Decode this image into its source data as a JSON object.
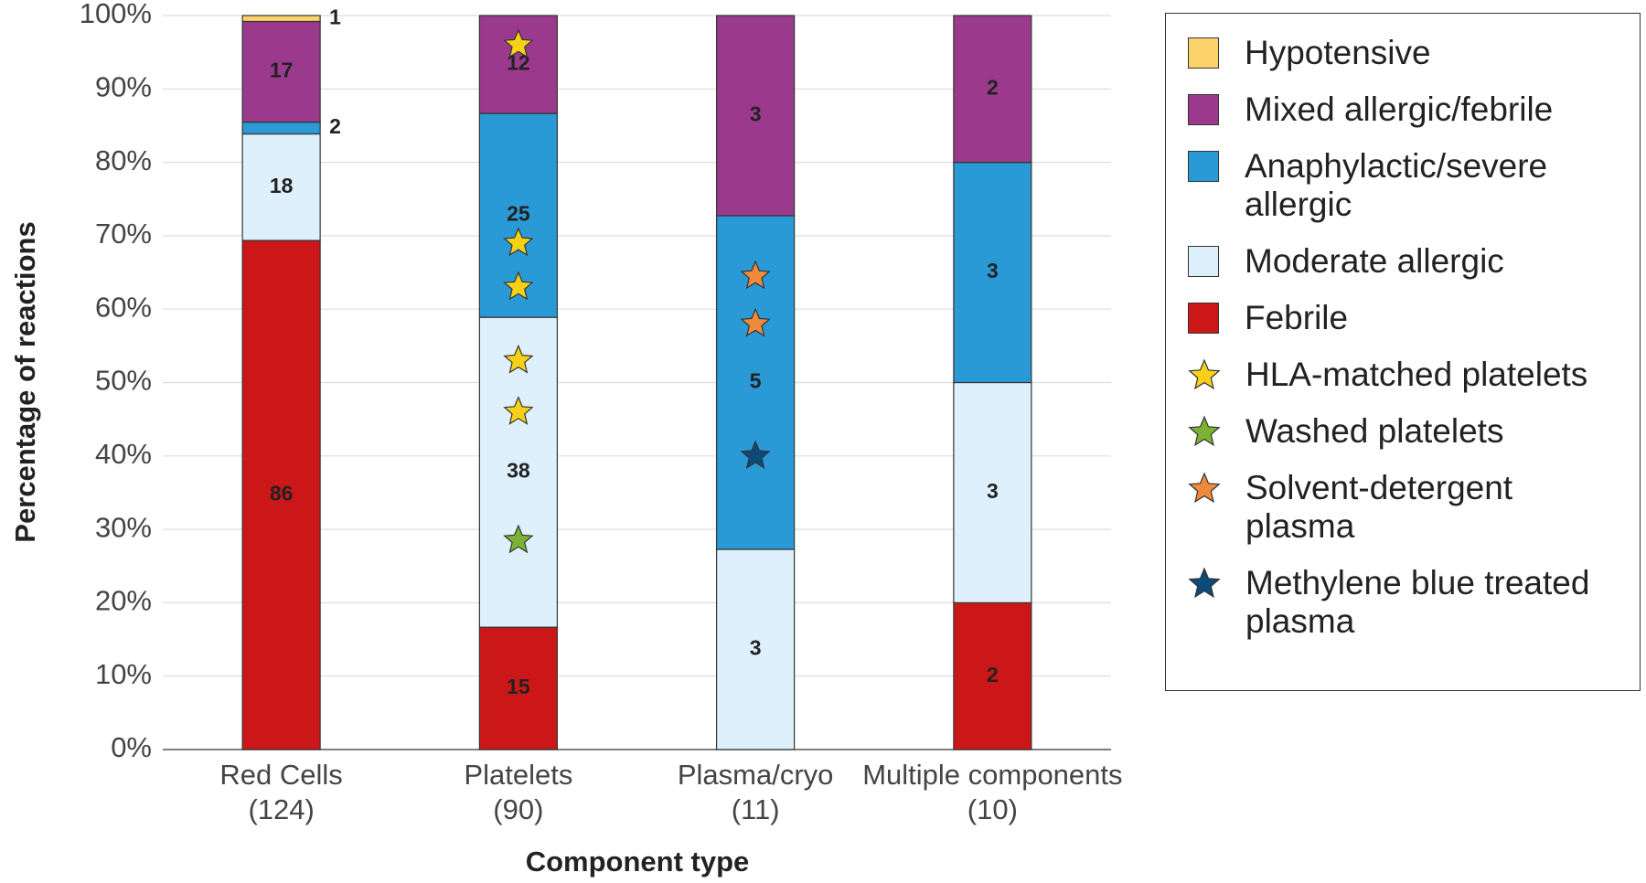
{
  "chart_data": {
    "type": "bar",
    "stacked": "percent",
    "x_label": "Component type",
    "y_label": "Percentage of reactions",
    "categories": [
      [
        "Red Cells",
        "(124)"
      ],
      [
        "Platelets",
        "(90)"
      ],
      [
        "Plasma/cryo",
        "(11)"
      ],
      [
        "Multiple components",
        "(10)"
      ]
    ],
    "series": [
      {
        "name": "Febrile",
        "color": "#cc1719",
        "label_color": "#ffffff",
        "values": [
          86,
          15,
          0,
          2
        ]
      },
      {
        "name": "Moderate allergic",
        "color": "#def0fb",
        "label_color": "#111111",
        "values": [
          18,
          38,
          3,
          3
        ]
      },
      {
        "name": "Anaphylactic/severe allergic",
        "color": "#2a9ad6",
        "label_color": "#ffffff",
        "values": [
          2,
          25,
          5,
          3
        ]
      },
      {
        "name": "Mixed allergic/febrile",
        "color": "#9b3a8c",
        "label_color": "#ffffff",
        "values": [
          17,
          12,
          3,
          2
        ]
      },
      {
        "name": "Hypotensive",
        "color": "#fcd36a",
        "label_color": "#111111",
        "values": [
          1,
          0,
          0,
          0
        ]
      }
    ],
    "markers": [
      {
        "name": "HLA-matched platelets",
        "color": "#f7d117",
        "points": [
          {
            "category": "Platelets",
            "y": 96
          },
          {
            "category": "Platelets",
            "y": 69
          },
          {
            "category": "Platelets",
            "y": 63
          },
          {
            "category": "Platelets",
            "y": 53
          },
          {
            "category": "Platelets",
            "y": 46
          }
        ]
      },
      {
        "name": "Washed platelets",
        "color": "#7cb233",
        "points": [
          {
            "category": "Platelets",
            "y": 28.5
          }
        ]
      },
      {
        "name": "Solvent-detergent plasma",
        "color": "#f08a3b",
        "points": [
          {
            "category": "Plasma/cryo",
            "y": 64.5
          },
          {
            "category": "Plasma/cryo",
            "y": 58
          }
        ]
      },
      {
        "name": "Methylene blue treated plasma",
        "color": "#0d4a78",
        "points": [
          {
            "category": "Plasma/cryo",
            "y": 40
          }
        ]
      }
    ],
    "ylim": [
      0,
      100
    ],
    "yticks": [
      {
        "value": 0,
        "label": "0%"
      },
      {
        "value": 10,
        "label": "10%"
      },
      {
        "value": 20,
        "label": "20%"
      },
      {
        "value": 30,
        "label": "30%"
      },
      {
        "value": 40,
        "label": "40%"
      },
      {
        "value": 50,
        "label": "50%"
      },
      {
        "value": 60,
        "label": "60%"
      },
      {
        "value": 70,
        "label": "70%"
      },
      {
        "value": 80,
        "label": "80%"
      },
      {
        "value": 90,
        "label": "90%"
      },
      {
        "value": 100,
        "label": "100%"
      }
    ],
    "grid": true,
    "legend": "right"
  }
}
